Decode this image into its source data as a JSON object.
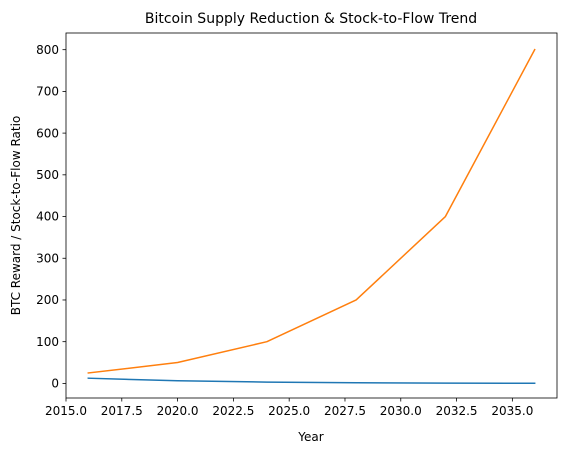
{
  "chart_data": {
    "type": "line",
    "title": "Bitcoin Supply Reduction & Stock-to-Flow Trend",
    "xlabel": "Year",
    "ylabel": "BTC Reward / Stock-to-Flow Ratio",
    "xlim": [
      2015.0,
      2037.0
    ],
    "ylim": [
      -35,
      840
    ],
    "xticks": [
      2015.0,
      2017.5,
      2020.0,
      2022.5,
      2025.0,
      2027.5,
      2030.0,
      2032.5,
      2035.0
    ],
    "xtick_labels": [
      "2015.0",
      "2017.5",
      "2020.0",
      "2022.5",
      "2025.0",
      "2027.5",
      "2030.0",
      "2032.5",
      "2035.0"
    ],
    "yticks": [
      0,
      100,
      200,
      300,
      400,
      500,
      600,
      700,
      800
    ],
    "ytick_labels": [
      "0",
      "100",
      "200",
      "300",
      "400",
      "500",
      "600",
      "700",
      "800"
    ],
    "grid": false,
    "x": [
      2016,
      2020,
      2024,
      2028,
      2032,
      2036
    ],
    "series": [
      {
        "values": [
          12.5,
          6.25,
          3.125,
          1.5625,
          0.78125,
          0.390625
        ],
        "color": "#1f77b4"
      },
      {
        "values": [
          25,
          50,
          100,
          200,
          400,
          800
        ],
        "color": "#ff7f0e"
      }
    ]
  }
}
